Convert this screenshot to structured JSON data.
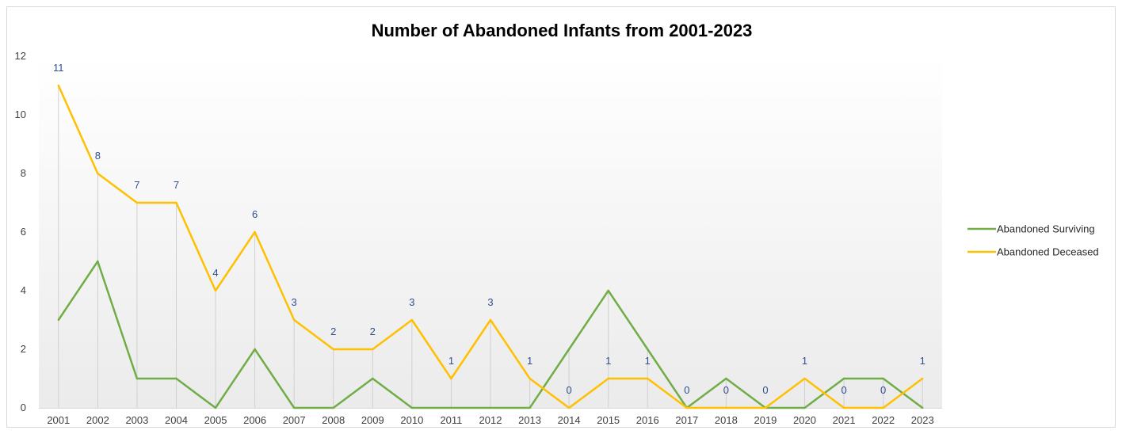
{
  "chart_data": {
    "type": "line",
    "title": "Number of Abandoned Infants from 2001-2023",
    "xlabel": "",
    "ylabel": "",
    "categories": [
      "2001",
      "2002",
      "2003",
      "2004",
      "2005",
      "2006",
      "2007",
      "2008",
      "2009",
      "2010",
      "2011",
      "2012",
      "2013",
      "2014",
      "2015",
      "2016",
      "2017",
      "2018",
      "2019",
      "2020",
      "2021",
      "2022",
      "2023"
    ],
    "ylim": [
      0,
      12
    ],
    "yticks": [
      0,
      2,
      4,
      6,
      8,
      10,
      12
    ],
    "series": [
      {
        "name": "Abandoned Surviving",
        "color": "#70ad47",
        "values": [
          3,
          5,
          1,
          1,
          0,
          2,
          0,
          0,
          1,
          0,
          0,
          0,
          0,
          2,
          4,
          2,
          0,
          1,
          0,
          0,
          1,
          1,
          0
        ],
        "data_labels": false
      },
      {
        "name": "Abandoned Deceased",
        "color": "#ffc000",
        "values": [
          11,
          8,
          7,
          7,
          4,
          6,
          3,
          2,
          2,
          3,
          1,
          3,
          1,
          0,
          1,
          1,
          0,
          0,
          0,
          1,
          0,
          0,
          1
        ],
        "data_labels": true,
        "label_color": "#2f4e8f"
      }
    ],
    "drop_lines": true,
    "grid": false,
    "legend_position": "right",
    "plot_background": "gradient white to light gray"
  }
}
